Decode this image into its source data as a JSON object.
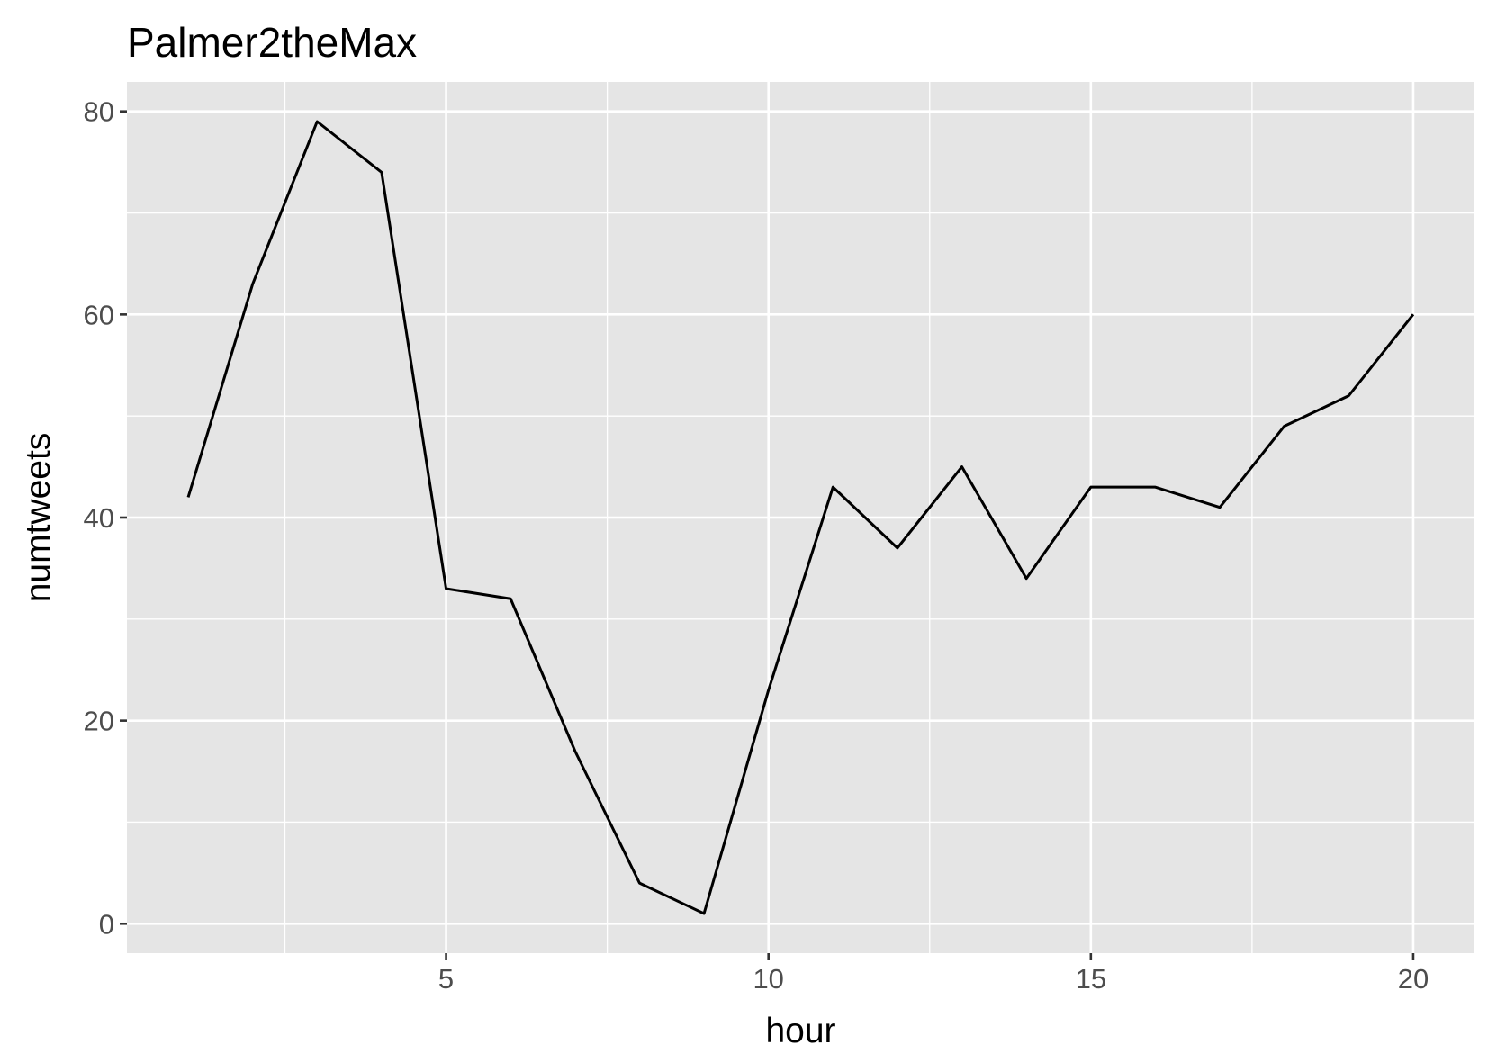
{
  "chart_data": {
    "type": "line",
    "title": "Palmer2theMax",
    "xlabel": "hour",
    "ylabel": "numtweets",
    "xlim": [
      0.05,
      20.95
    ],
    "ylim": [
      -2.9,
      82.9
    ],
    "x_ticks": [
      5,
      10,
      15,
      20
    ],
    "x_tick_labels": [
      "5",
      "10",
      "15",
      "20"
    ],
    "x_minor_ticks": [
      2.5,
      7.5,
      12.5,
      17.5
    ],
    "y_ticks": [
      0,
      20,
      40,
      60,
      80
    ],
    "y_tick_labels": [
      "0",
      "20",
      "40",
      "60",
      "80"
    ],
    "y_minor_ticks": [
      10,
      30,
      50,
      70
    ],
    "grid": true,
    "colors": {
      "panel_background": "#e5e5e5",
      "grid": "#ffffff",
      "line": "#000000",
      "tick_label": "#4d4d4d",
      "tick_mark": "#333333"
    },
    "series": [
      {
        "x": [
          1,
          2,
          3,
          4,
          5,
          6,
          7,
          8,
          9,
          10,
          11,
          12,
          13,
          14,
          15,
          16,
          17,
          18,
          19,
          20
        ],
        "values": [
          42,
          63,
          79,
          74,
          33,
          32,
          17,
          4,
          1,
          23,
          43,
          37,
          45,
          34,
          43,
          43,
          41,
          49,
          52,
          60
        ]
      }
    ]
  }
}
